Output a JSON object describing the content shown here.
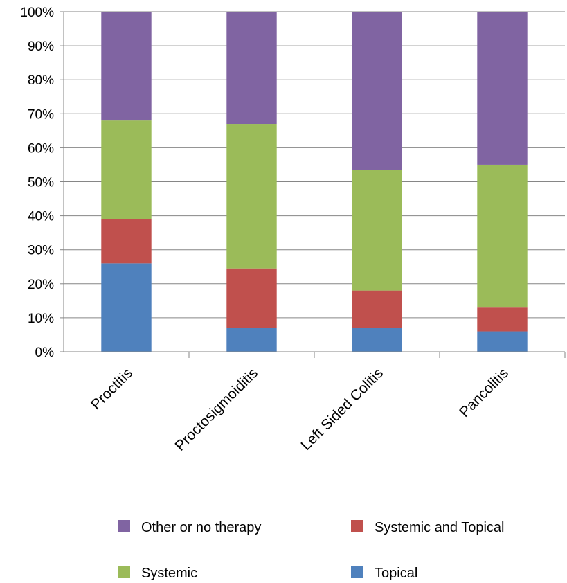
{
  "chart_data": {
    "type": "bar",
    "stacked": true,
    "categories": [
      "Proctitis",
      "Proctosigmoiditis",
      "Left Sided Colitis",
      "Pancolitis"
    ],
    "series": [
      {
        "name": "Topical",
        "color": "#4f81bd",
        "values": [
          26,
          7,
          7,
          6
        ]
      },
      {
        "name": "Systemic and Topical",
        "color": "#c0504d",
        "values": [
          13,
          17.5,
          11,
          7
        ]
      },
      {
        "name": "Systemic",
        "color": "#9bbb59",
        "values": [
          29,
          42.5,
          35.5,
          42
        ]
      },
      {
        "name": "Other or no therapy",
        "color": "#8064a2",
        "values": [
          32,
          33,
          46.5,
          45
        ]
      }
    ],
    "yticks": [
      "0%",
      "10%",
      "20%",
      "30%",
      "40%",
      "50%",
      "60%",
      "70%",
      "80%",
      "90%",
      "100%"
    ],
    "ylim": [
      0,
      100
    ],
    "grid": true,
    "legend_position": "bottom",
    "legend_order": [
      "Other or no therapy",
      "Systemic and Topical",
      "Systemic",
      "Topical"
    ]
  }
}
